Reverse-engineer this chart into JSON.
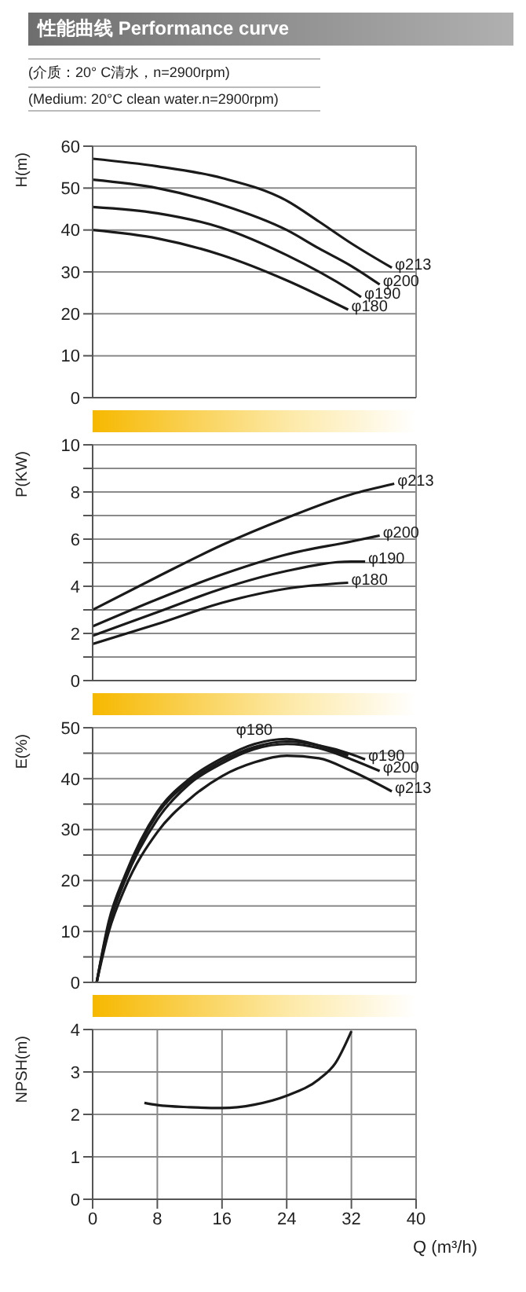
{
  "chart_data": [
    {
      "type": "line",
      "title": "性能曲线 Performance curve",
      "subtitle": "(介质：20° C清水，n=2900rpm)",
      "annotations": [
        "(Medium: 20°C clean water.n=2900rpm)"
      ],
      "ylabel": "H(m)",
      "xlim": [
        0,
        40
      ],
      "xticks": [
        0,
        8,
        16,
        24,
        32,
        40
      ],
      "ylim": [
        0,
        60
      ],
      "yticks": [
        0,
        10,
        20,
        30,
        40,
        50,
        60
      ],
      "tick_labels": "y",
      "grid": true,
      "legend": false,
      "marker": "none",
      "series": [
        {
          "name": "φ213",
          "color": "#1a1a1a",
          "x": [
            0,
            8,
            16,
            24,
            28,
            32,
            37
          ],
          "values": [
            57,
            55.2,
            52.4,
            47,
            42,
            36.8,
            31
          ]
        },
        {
          "name": "φ200",
          "color": "#1a1a1a",
          "x": [
            0,
            8,
            16,
            24,
            28,
            32,
            35.5
          ],
          "values": [
            52,
            50,
            46,
            40,
            35.6,
            31.4,
            27
          ]
        },
        {
          "name": "φ190",
          "color": "#1a1a1a",
          "x": [
            0,
            8,
            16,
            24,
            32,
            33.2
          ],
          "values": [
            45.5,
            44,
            40.5,
            34,
            25.5,
            24
          ]
        },
        {
          "name": "φ180",
          "color": "#1a1a1a",
          "x": [
            0,
            8,
            16,
            24,
            31.6
          ],
          "values": [
            40,
            38,
            34,
            28,
            21
          ]
        }
      ]
    },
    {
      "type": "line",
      "ylabel": "P(KW)",
      "xlim": [
        0,
        40
      ],
      "xticks": [
        0,
        8,
        16,
        24,
        32,
        40
      ],
      "ylim": [
        0,
        10
      ],
      "yticks": [
        0,
        {
          "value": 1,
          "label": null
        },
        2,
        {
          "value": 3,
          "label": null
        },
        4,
        {
          "value": 5,
          "label": null
        },
        6,
        {
          "value": 7,
          "label": null
        },
        8,
        {
          "value": 9,
          "label": null
        },
        10
      ],
      "tick_labels": "y",
      "grid": true,
      "legend": false,
      "marker": "none",
      "series": [
        {
          "name": "φ213",
          "color": "#1a1a1a",
          "x": [
            0,
            8,
            16,
            24,
            32,
            37.3
          ],
          "values": [
            3,
            4.4,
            5.75,
            6.9,
            7.9,
            8.35
          ]
        },
        {
          "name": "φ200",
          "color": "#1a1a1a",
          "x": [
            0,
            8,
            16,
            24,
            32,
            35.5
          ],
          "values": [
            2.3,
            3.45,
            4.5,
            5.35,
            5.9,
            6.15
          ]
        },
        {
          "name": "φ190",
          "color": "#1a1a1a",
          "x": [
            0,
            8,
            16,
            24,
            32,
            33.7
          ],
          "values": [
            1.9,
            2.9,
            3.9,
            4.65,
            5.05,
            5.05
          ]
        },
        {
          "name": "φ180",
          "color": "#1a1a1a",
          "x": [
            0,
            8,
            16,
            24,
            31.6
          ],
          "values": [
            1.55,
            2.4,
            3.3,
            3.9,
            4.15
          ]
        }
      ]
    },
    {
      "type": "line",
      "ylabel": "E(%)",
      "xlim": [
        0,
        40
      ],
      "xticks": [
        0,
        8,
        16,
        24,
        32,
        40
      ],
      "ylim": [
        0,
        50
      ],
      "yticks": [
        0,
        {
          "value": 5,
          "label": null
        },
        10,
        {
          "value": 15,
          "label": null
        },
        20,
        {
          "value": 25,
          "label": null
        },
        30,
        {
          "value": 35,
          "label": null
        },
        40,
        {
          "value": 45,
          "label": null
        },
        50
      ],
      "tick_labels": "y",
      "grid": true,
      "legend": false,
      "marker": "none",
      "series": [
        {
          "name": "φ180",
          "color": "#1a1a1a",
          "x": [
            0.5,
            2,
            4,
            8,
            12,
            16,
            20,
            24,
            28,
            31.6
          ],
          "values": [
            0,
            12,
            21,
            33.5,
            40,
            44,
            46.8,
            47.8,
            46.5,
            44.5
          ]
        },
        {
          "name": "φ190",
          "color": "#1a1a1a",
          "x": [
            0.5,
            2,
            4,
            8,
            12,
            16,
            20,
            24,
            28,
            32,
            33.7
          ],
          "values": [
            0,
            11.5,
            20.5,
            33,
            39.5,
            43.5,
            46.2,
            47.3,
            46.5,
            44.8,
            43.8
          ]
        },
        {
          "name": "φ200",
          "color": "#1a1a1a",
          "x": [
            0.5,
            2,
            4,
            8,
            12,
            16,
            20,
            24,
            28,
            32,
            35.5
          ],
          "values": [
            0,
            11,
            20,
            32,
            39,
            43,
            45.8,
            46.8,
            46,
            43.8,
            41.5
          ]
        },
        {
          "name": "φ213",
          "color": "#1a1a1a",
          "x": [
            0.5,
            2,
            4,
            8,
            12,
            16,
            20,
            24,
            28,
            32,
            37
          ],
          "values": [
            0,
            10,
            18.5,
            29.5,
            36,
            40.5,
            43.2,
            44.5,
            44,
            41.5,
            37.5
          ]
        }
      ]
    },
    {
      "type": "line",
      "ylabel": "NPSH(m)",
      "xlabel": "Q (m³/h)",
      "xlim": [
        0,
        40
      ],
      "xticks": [
        0,
        8,
        16,
        24,
        32,
        40
      ],
      "ylim": [
        0,
        4
      ],
      "yticks": [
        0,
        1,
        2,
        3,
        4
      ],
      "grid": true,
      "legend": false,
      "marker": "none",
      "series": [
        {
          "color": "#1a1a1a",
          "x": [
            6.4,
            8,
            12,
            16,
            20,
            24,
            28,
            30,
            32
          ],
          "values": [
            2.27,
            2.22,
            2.17,
            2.15,
            2.23,
            2.44,
            2.83,
            3.2,
            3.96
          ]
        }
      ]
    }
  ]
}
